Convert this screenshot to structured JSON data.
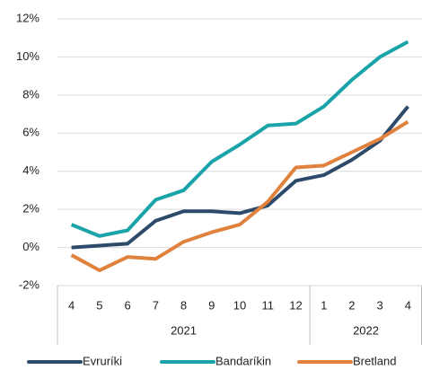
{
  "chart_data": {
    "type": "line",
    "groups": [
      {
        "name": "2021",
        "categories": [
          "4",
          "5",
          "6",
          "7",
          "8",
          "9",
          "10",
          "11",
          "12"
        ]
      },
      {
        "name": "2022",
        "categories": [
          "1",
          "2",
          "3",
          "4"
        ]
      }
    ],
    "series": [
      {
        "name": "Evruríki",
        "color": "#2e4a6b",
        "values": [
          0.0,
          0.1,
          0.2,
          1.4,
          1.9,
          1.9,
          1.8,
          2.2,
          3.5,
          3.8,
          4.6,
          5.6,
          7.4
        ]
      },
      {
        "name": "Bandaríkin",
        "color": "#1aa3a8",
        "values": [
          1.2,
          0.6,
          0.9,
          2.5,
          3.0,
          4.5,
          5.4,
          6.4,
          6.5,
          7.4,
          8.8,
          10.0,
          10.8
        ]
      },
      {
        "name": "Bretland",
        "color": "#e0823d",
        "values": [
          -0.4,
          -1.2,
          -0.5,
          -0.6,
          0.3,
          0.8,
          1.2,
          2.4,
          4.2,
          4.3,
          5.0,
          5.7,
          6.6
        ]
      }
    ],
    "ylim": [
      -2,
      12
    ],
    "yticks": [
      {
        "value": -2,
        "label": "-2%"
      },
      {
        "value": 0,
        "label": "0%"
      },
      {
        "value": 2,
        "label": "2%"
      },
      {
        "value": 4,
        "label": "4%"
      },
      {
        "value": 6,
        "label": "6%"
      },
      {
        "value": 8,
        "label": "8%"
      },
      {
        "value": 10,
        "label": "10%"
      },
      {
        "value": 12,
        "label": "12%"
      }
    ],
    "grid": true,
    "legend": "bottom"
  }
}
